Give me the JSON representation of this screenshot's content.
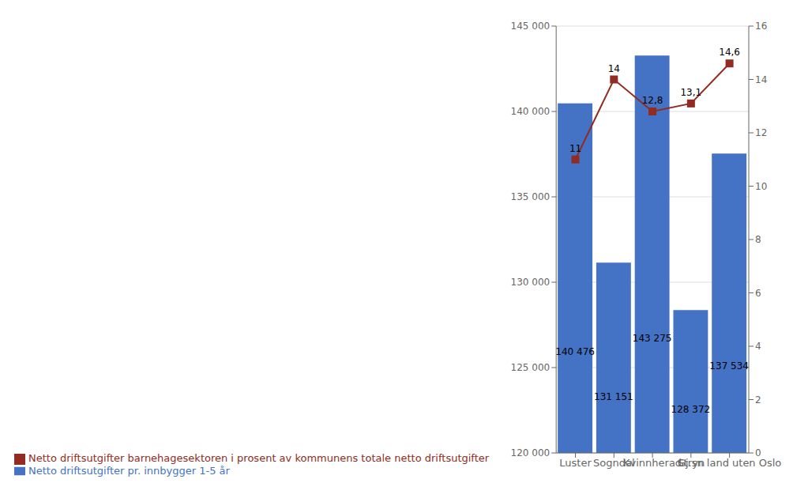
{
  "chart_data": {
    "type": "bar",
    "categories": [
      "Luster",
      "Sogndal",
      "Kvinnherad",
      "Stryn",
      "Gj.sn land uten Oslo"
    ],
    "series": [
      {
        "name": "Netto driftsutgifter pr. innbygger 1-5 år",
        "type": "bar",
        "color": "#4472C4",
        "values": [
          140476,
          131151,
          143275,
          128372,
          137534
        ],
        "value_labels": [
          "140 476",
          "131 151",
          "143 275",
          "128 372",
          "137 534"
        ]
      },
      {
        "name": "Netto driftsutgifter barnehagesektoren i prosent av kommunens totale netto driftsutgifter",
        "type": "line",
        "axis": "y2",
        "color": "#922B21",
        "marker": "square",
        "values": [
          11,
          14,
          12.8,
          13.1,
          14.6
        ],
        "value_labels": [
          "11",
          "14",
          "12,8",
          "13,1",
          "14,6"
        ]
      }
    ],
    "ylim": [
      120000,
      145000
    ],
    "yticks": [
      {
        "value": 120000,
        "label": "120 000"
      },
      {
        "value": 125000,
        "label": "125 000"
      },
      {
        "value": 130000,
        "label": "130 000"
      },
      {
        "value": 135000,
        "label": "135 000"
      },
      {
        "value": 140000,
        "label": "140 000"
      },
      {
        "value": 145000,
        "label": "145 000"
      }
    ],
    "y2lim": [
      0,
      16
    ],
    "y2ticks": [
      0,
      2,
      4,
      6,
      8,
      10,
      12,
      14,
      16
    ],
    "grid": true,
    "legend": "lower left",
    "data_labels": true
  }
}
